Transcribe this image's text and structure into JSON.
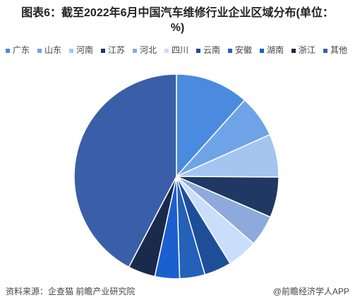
{
  "chart_data": {
    "type": "pie",
    "title": "图表6：截至2022年6月中国汽车维修行业企业区域分布(单位：%)",
    "categories": [
      "广东",
      "山东",
      "河南",
      "江苏",
      "河北",
      "四川",
      "云南",
      "安徽",
      "湖南",
      "浙江",
      "其他"
    ],
    "values": [
      11.6,
      6.7,
      6.8,
      6.4,
      4.9,
      4.8,
      4.3,
      4.0,
      3.9,
      4.3,
      42.3
    ],
    "colors": [
      "#4a8be0",
      "#6fa3e8",
      "#a4c5f0",
      "#1f3864",
      "#8ea9db",
      "#c9defa",
      "#1f4e99",
      "#2461b8",
      "#1c5fcf",
      "#1a2a4a",
      "#3a5fa8"
    ],
    "legend": "top"
  },
  "source": "资料来源：企查猫 前瞻产业研究院",
  "credit": "@前瞻经济学人APP"
}
